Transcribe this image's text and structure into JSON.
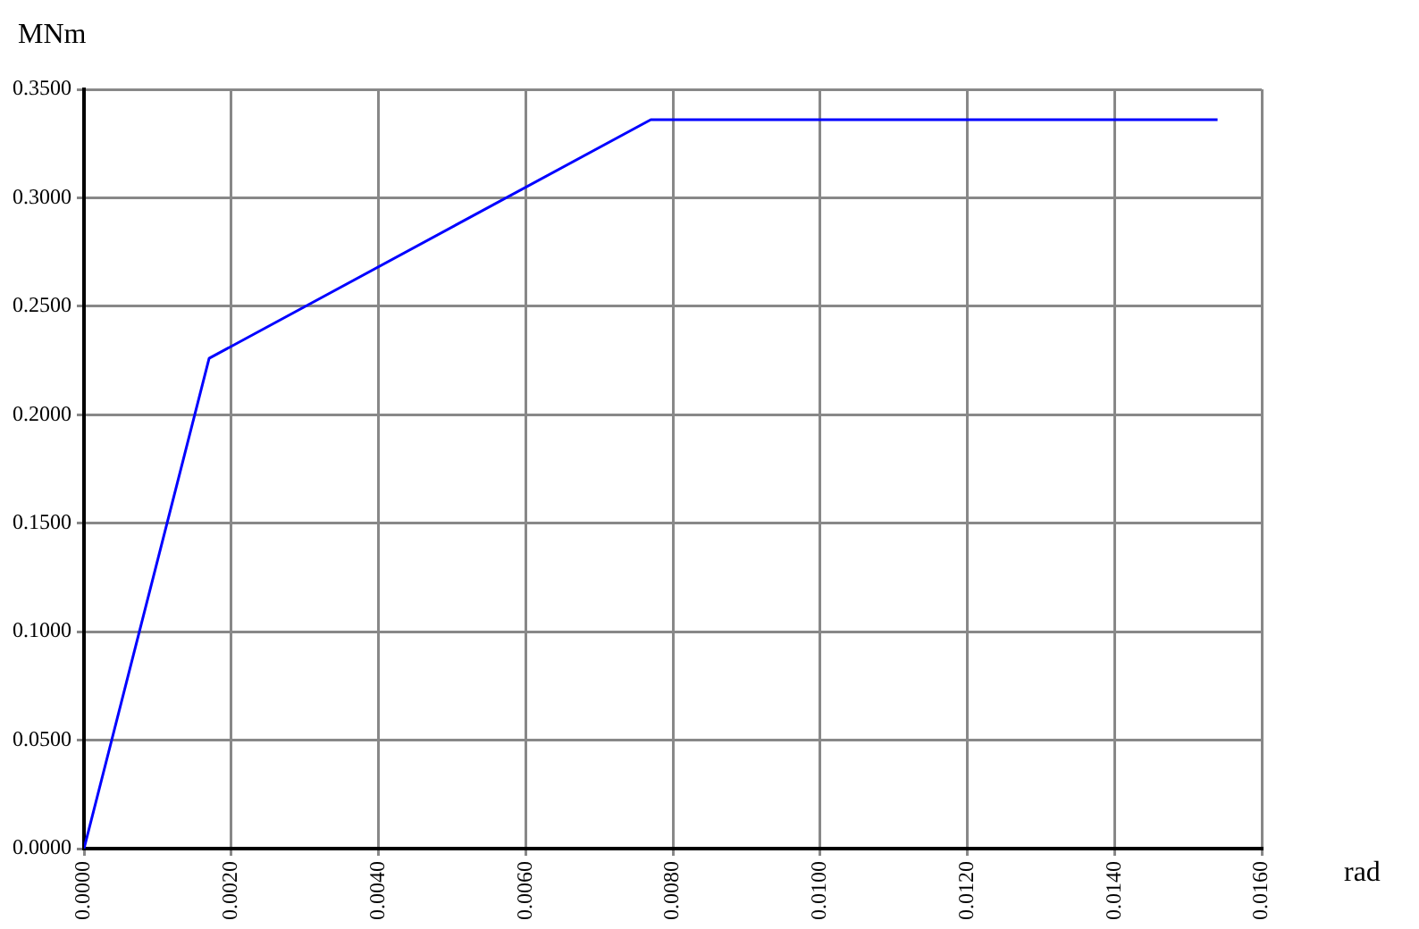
{
  "chart_data": {
    "type": "line",
    "xlabel": "rad",
    "ylabel": "MNm",
    "x": [
      0,
      0.0017,
      0.0077,
      0.0154
    ],
    "series": [
      {
        "color": "#0000ff",
        "values": [
          0,
          0.226,
          0.336,
          0.336
        ]
      }
    ],
    "xlim": [
      0,
      0.016
    ],
    "xticks": [
      {
        "value": 0,
        "label": "0.0000"
      },
      {
        "value": 0.002,
        "label": "0.0020"
      },
      {
        "value": 0.004,
        "label": "0.0040"
      },
      {
        "value": 0.006,
        "label": "0.0060"
      },
      {
        "value": 0.008,
        "label": "0.0080"
      },
      {
        "value": 0.01,
        "label": "0.0100"
      },
      {
        "value": 0.012,
        "label": "0.0120"
      },
      {
        "value": 0.014,
        "label": "0.0140"
      },
      {
        "value": 0.016,
        "label": "0.0160"
      }
    ],
    "ylim": [
      0,
      0.35
    ],
    "yticks": [
      {
        "value": 0,
        "label": "0.0000"
      },
      {
        "value": 0.05,
        "label": "0.0500"
      },
      {
        "value": 0.1,
        "label": "0.1000"
      },
      {
        "value": 0.15,
        "label": "0.1500"
      },
      {
        "value": 0.2,
        "label": "0.2000"
      },
      {
        "value": 0.25,
        "label": "0.2500"
      },
      {
        "value": 0.3,
        "label": "0.3000"
      },
      {
        "value": 0.35,
        "label": "0.3500"
      }
    ],
    "grid": true,
    "legend": false,
    "marker": "none",
    "line_style": "solid"
  }
}
